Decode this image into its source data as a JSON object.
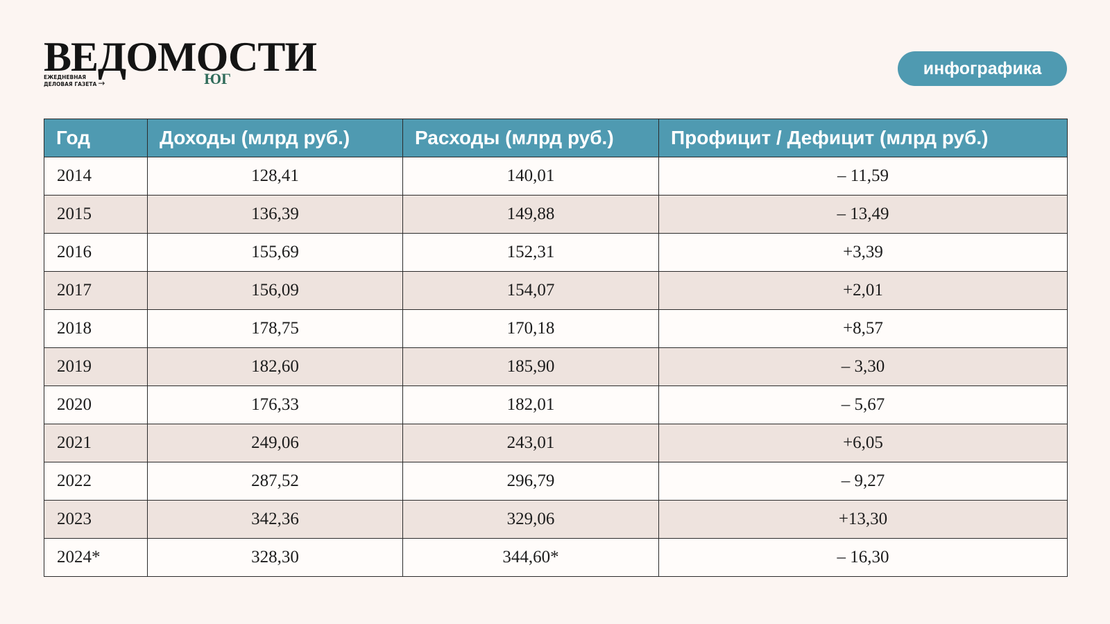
{
  "brand": {
    "name": "ВЕДОМОСТИ",
    "tagline_line1": "ЕЖЕДНЕВНАЯ",
    "tagline_line2": "ДЕЛОВАЯ ГАЗЕТА",
    "region": "ЮГ"
  },
  "badge": "инфографика",
  "colors": {
    "accent": "#4f9ab1",
    "background": "#fcf5f2",
    "row_alt": "#eee3de",
    "region": "#2f6b5a"
  },
  "chart_data": {
    "type": "table",
    "columns": [
      "Год",
      "Доходы (млрд руб.)",
      "Расходы (млрд руб.)",
      "Профицит / Дефицит (млрд руб.)"
    ],
    "rows": [
      [
        "2014",
        "128,41",
        "140,01",
        "– 11,59"
      ],
      [
        "2015",
        "136,39",
        "149,88",
        "– 13,49"
      ],
      [
        "2016",
        "155,69",
        "152,31",
        "+3,39"
      ],
      [
        "2017",
        "156,09",
        "154,07",
        "+2,01"
      ],
      [
        "2018",
        "178,75",
        "170,18",
        "+8,57"
      ],
      [
        "2019",
        "182,60",
        "185,90",
        "– 3,30"
      ],
      [
        "2020",
        "176,33",
        "182,01",
        "– 5,67"
      ],
      [
        "2021",
        "249,06",
        "243,01",
        "+6,05"
      ],
      [
        "2022",
        "287,52",
        "296,79",
        "– 9,27"
      ],
      [
        "2023",
        "342,36",
        "329,06",
        "+13,30"
      ],
      [
        "2024*",
        "328,30",
        "344,60*",
        "– 16,30"
      ]
    ]
  }
}
